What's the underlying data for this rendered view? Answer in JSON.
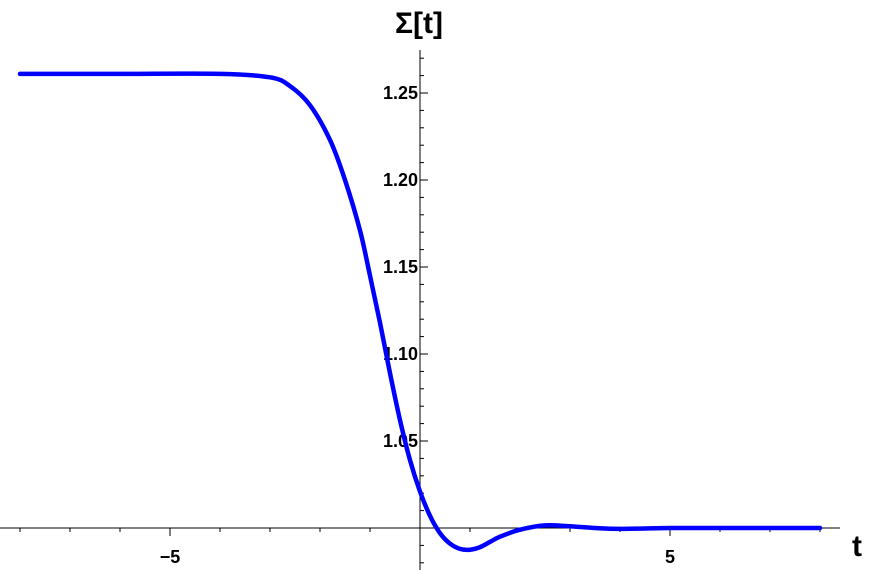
{
  "chart_data": {
    "type": "line",
    "title": "",
    "xlabel": "t",
    "ylabel": "Σ[t]",
    "xlim": [
      -8.3,
      8.0
    ],
    "ylim": [
      0.985,
      1.28
    ],
    "x_ticks": [
      -5,
      5
    ],
    "x_tick_labels": [
      "−5",
      "5"
    ],
    "y_ticks": [
      1.05,
      1.1,
      1.15,
      1.2,
      1.25
    ],
    "y_tick_labels": [
      "1.05",
      "1.10",
      "1.15",
      "1.20",
      "1.25"
    ],
    "grid": false,
    "series": [
      {
        "color": "#0000ff",
        "x": [
          -8.0,
          -6.0,
          -4.0,
          -3.0,
          -2.6,
          -2.2,
          -1.8,
          -1.5,
          -1.2,
          -1.0,
          -0.8,
          -0.6,
          -0.4,
          -0.2,
          0.0,
          0.2,
          0.4,
          0.6,
          0.8,
          1.0,
          1.2,
          1.4,
          1.6,
          2.0,
          2.5,
          3.0,
          3.5,
          4.0,
          5.0,
          6.0,
          7.0,
          8.0
        ],
        "y": [
          1.261,
          1.261,
          1.261,
          1.259,
          1.254,
          1.243,
          1.223,
          1.2,
          1.171,
          1.145,
          1.118,
          1.089,
          1.062,
          1.039,
          1.021,
          1.007,
          0.997,
          0.991,
          0.988,
          0.9875,
          0.989,
          0.992,
          0.995,
          0.999,
          1.0015,
          1.001,
          1.0,
          0.9995,
          1.0,
          1.0,
          1.0,
          1.0
        ]
      }
    ]
  }
}
